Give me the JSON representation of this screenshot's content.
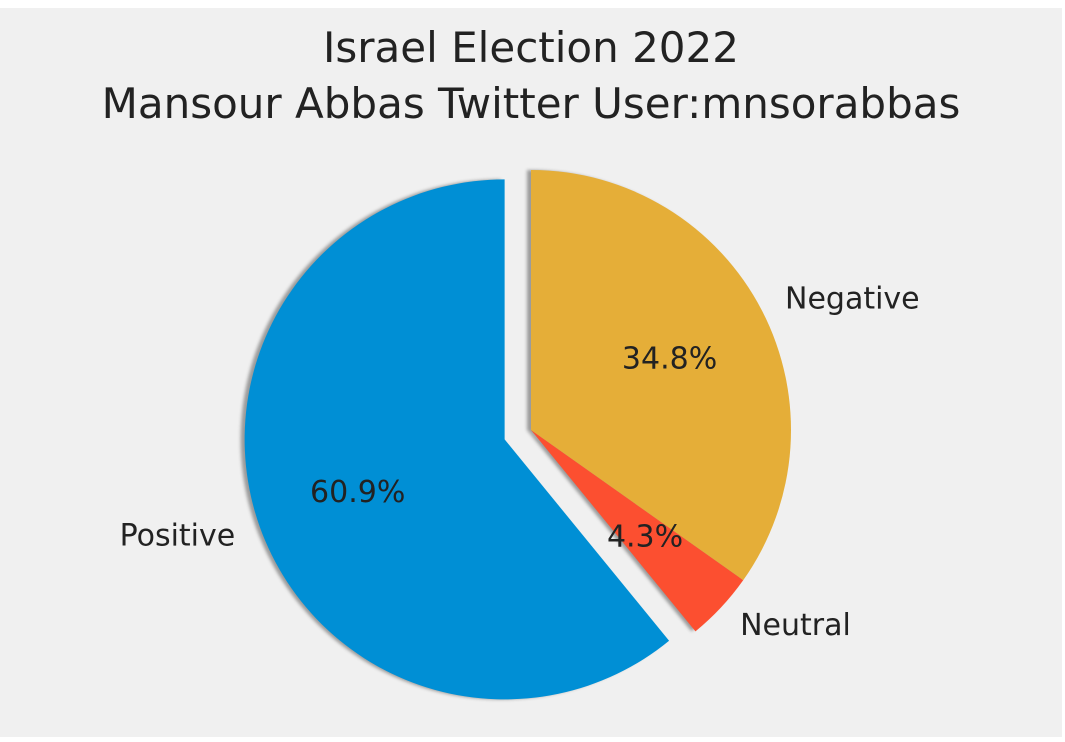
{
  "chart_data": {
    "type": "pie",
    "title": "Israel Election 2022",
    "subtitle": "Mansour Abbas Twitter User:mnsorabbas",
    "categories": [
      "Positive",
      "Neutral",
      "Negative"
    ],
    "values": [
      60.9,
      4.3,
      34.8
    ],
    "value_labels": [
      "60.9%",
      "4.3%",
      "34.8%"
    ],
    "colors": [
      "#008fd5",
      "#fc4f30",
      "#e5ae38"
    ],
    "exploded": [
      "Positive"
    ],
    "shadow": true,
    "legend": "none"
  },
  "colors": {
    "background": "#f0f0f0",
    "text": "#222222"
  }
}
